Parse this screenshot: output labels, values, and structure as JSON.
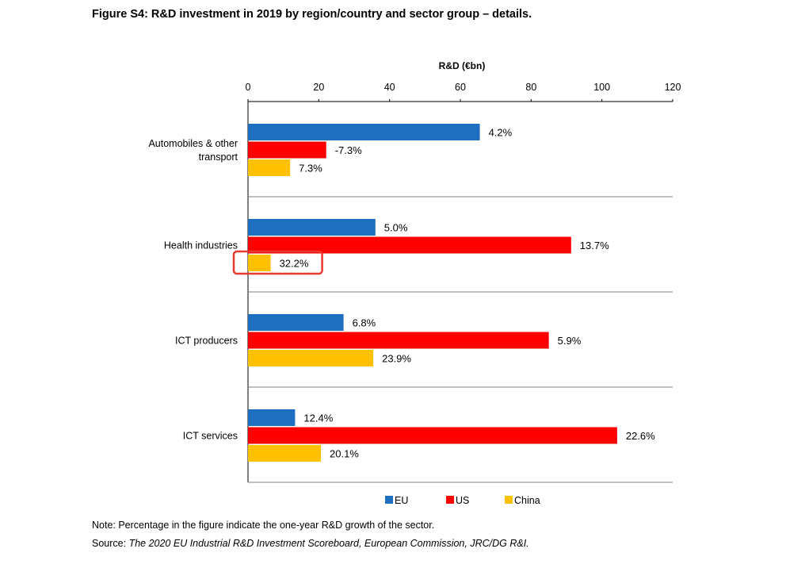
{
  "figure": {
    "title": "Figure S4: R&D investment in 2019 by region/country and sector group – details.",
    "note": "Note: Percentage in the figure indicate the one-year R&D growth of the sector.",
    "source_prefix": "Source: ",
    "source_text": "The 2020 EU Industrial R&D Investment Scoreboard, European Commission, JRC/DG R&I."
  },
  "colors": {
    "EU": "#1f6fc0",
    "US": "#ff0000",
    "China": "#ffc000",
    "highlight": "#e8382f"
  },
  "chart_data": {
    "type": "bar",
    "orientation": "horizontal",
    "xlabel": "R&D (€bn)",
    "xlim": [
      0,
      120
    ],
    "xticks": [
      "0",
      "20",
      "40",
      "60",
      "80",
      "100",
      "120"
    ],
    "categories": [
      "Automobiles & other transport",
      "Health industries",
      "ICT producers",
      "ICT services"
    ],
    "category_lines": [
      [
        "Automobiles & other",
        "transport"
      ],
      [
        "Health industries"
      ],
      [
        "ICT producers"
      ],
      [
        "ICT services"
      ]
    ],
    "series": [
      {
        "name": "EU",
        "values": [
          65.5,
          36.0,
          27.0,
          13.3
        ],
        "labels": [
          "4.2%",
          "5.0%",
          "6.8%",
          "12.4%"
        ]
      },
      {
        "name": "US",
        "values": [
          22.1,
          91.3,
          85.0,
          104.3
        ],
        "labels": [
          "-7.3%",
          "13.7%",
          "5.9%",
          "22.6%"
        ]
      },
      {
        "name": "China",
        "values": [
          11.9,
          6.4,
          35.4,
          20.6
        ],
        "labels": [
          "7.3%",
          "32.2%",
          "23.9%",
          "20.1%"
        ]
      }
    ],
    "legend": [
      "EU",
      "US",
      "China"
    ],
    "legend_position": "bottom",
    "grid": false,
    "highlight": {
      "category": "Health industries",
      "series": "China",
      "label": "32.2%"
    }
  }
}
